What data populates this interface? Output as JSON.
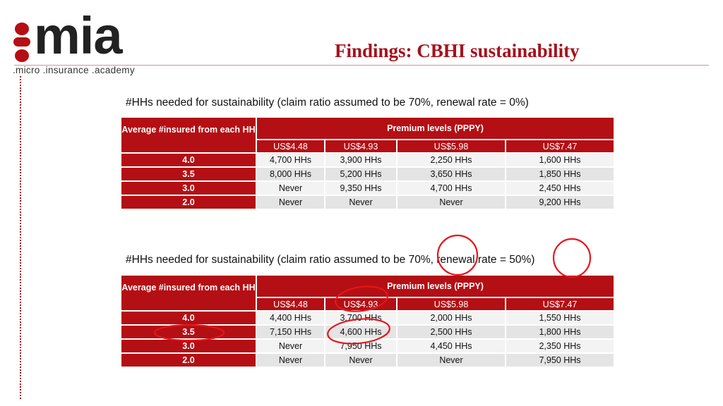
{
  "logo": {
    "wordmark": "mia",
    "tagline": ".micro .insurance .academy",
    "brand_color": "#b40f14"
  },
  "title": "Findings: CBHI sustainability",
  "tables": [
    {
      "caption": "#HHs needed for sustainability (claim ratio assumed to be 70%, renewal rate = 0%)",
      "row_header": "Average #insured from each HH",
      "group_header": "Premium levels (PPPY)",
      "premiums": [
        "US$4.48",
        "US$4.93",
        "US$5.98",
        "US$7.47"
      ],
      "rows": [
        {
          "label": "4.0",
          "cells": [
            "4,700 HHs",
            "3,900 HHs",
            "2,250 HHs",
            "1,600 HHs"
          ]
        },
        {
          "label": "3.5",
          "cells": [
            "8,000 HHs",
            "5,200 HHs",
            "3,650 HHs",
            "1,850 HHs"
          ]
        },
        {
          "label": "3.0",
          "cells": [
            "Never",
            "9,350 HHs",
            "4,700 HHs",
            "2,450 HHs"
          ]
        },
        {
          "label": "2.0",
          "cells": [
            "Never",
            "Never",
            "Never",
            "9,200 HHs"
          ]
        }
      ]
    },
    {
      "caption": "#HHs needed for sustainability (claim ratio assumed to be 70%, renewal rate = 50%)",
      "row_header": "Average #insured from each HH",
      "group_header": "Premium levels (PPPY)",
      "premiums": [
        "US$4.48",
        "US$4.93",
        "US$5.98",
        "US$7.47"
      ],
      "rows": [
        {
          "label": "4.0",
          "cells": [
            "4,400 HHs",
            "3,700 HHs",
            "2,000 HHs",
            "1,550 HHs"
          ]
        },
        {
          "label": "3.5",
          "cells": [
            "7,150 HHs",
            "4,600 HHs",
            "2,500 HHs",
            "1,800 HHs"
          ]
        },
        {
          "label": "3.0",
          "cells": [
            "Never",
            "7,950 HHs",
            "4,450 HHs",
            "2,350 HHs"
          ]
        },
        {
          "label": "2.0",
          "cells": [
            "Never",
            "Never",
            "Never",
            "7,950 HHs"
          ]
        }
      ]
    }
  ],
  "annotation_color": "#e8141c"
}
